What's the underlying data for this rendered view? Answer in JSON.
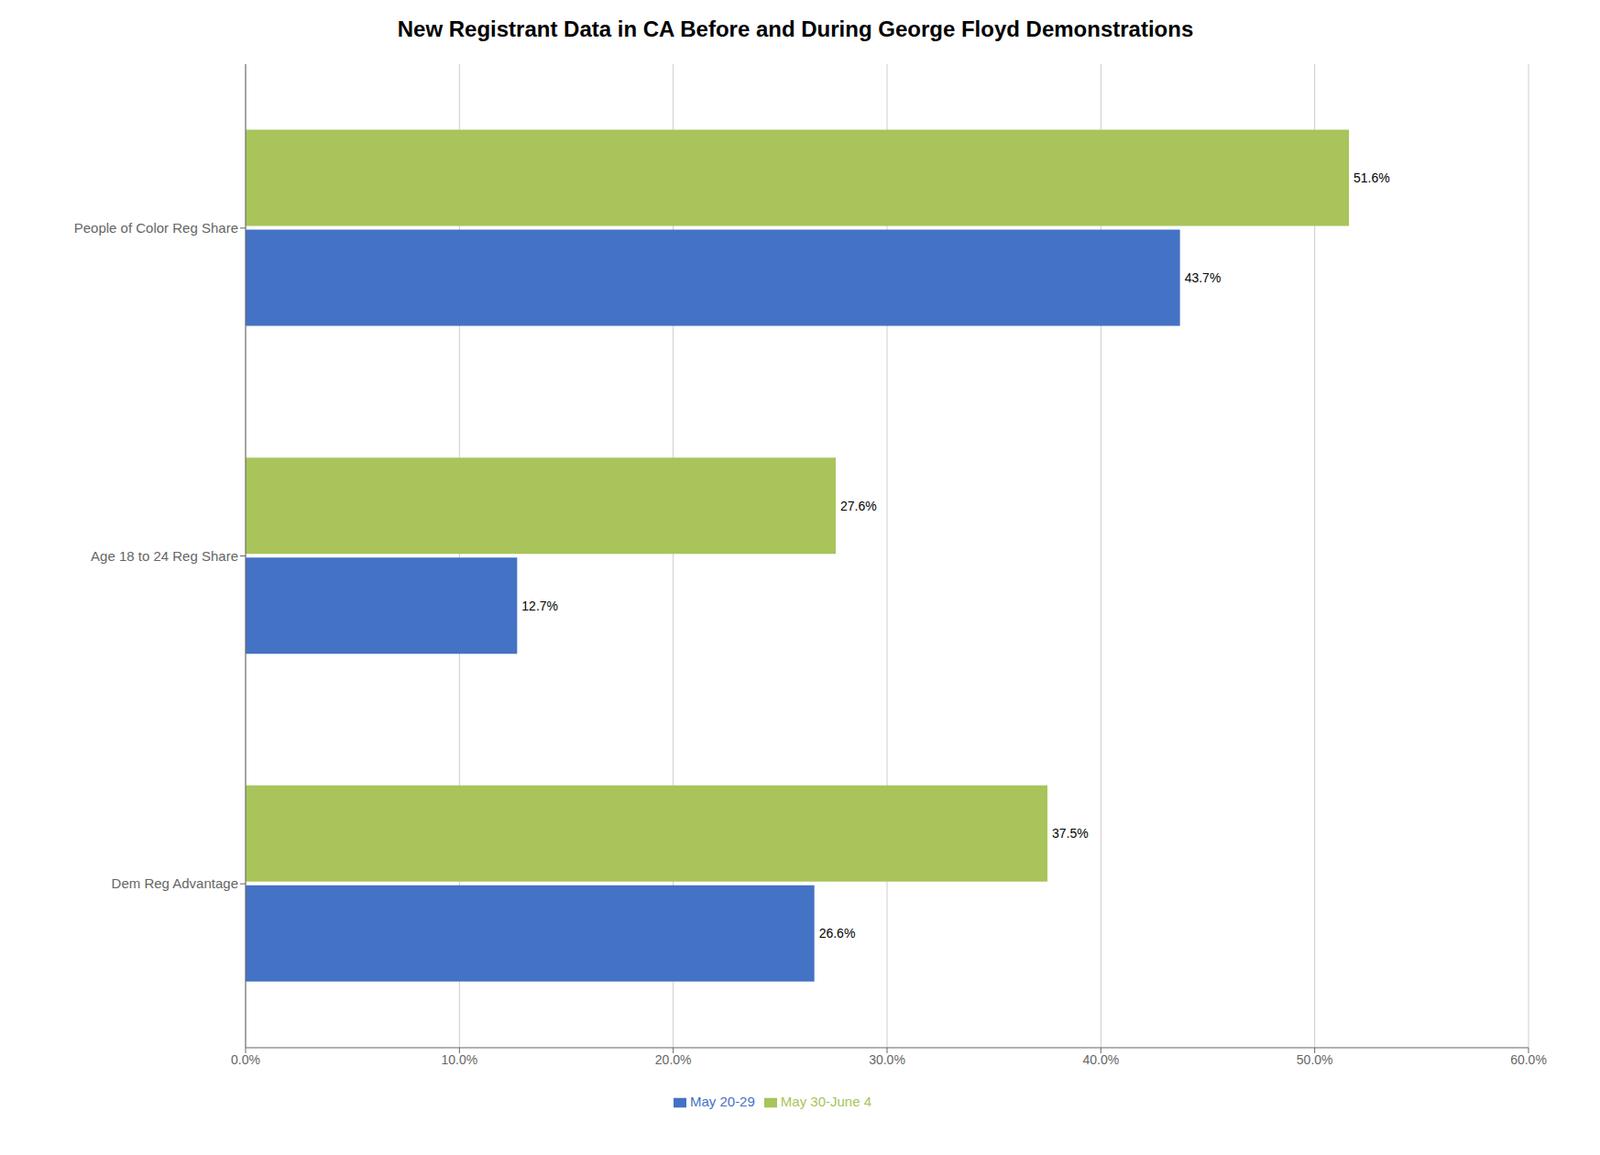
{
  "chart_data": {
    "type": "bar",
    "orientation": "horizontal",
    "title": "New Registrant Data in CA Before and During George Floyd Demonstrations",
    "categories": [
      "People of Color Reg Share",
      "Age 18 to 24 Reg Share",
      "Dem Reg Advantage"
    ],
    "series": [
      {
        "name": "May 30-June 4",
        "color": "#a8c45a",
        "values": [
          51.6,
          27.6,
          37.5
        ],
        "value_labels": [
          "51.6%",
          "27.6%",
          "37.5%"
        ]
      },
      {
        "name": "May 20-29",
        "color": "#4472c4",
        "values": [
          43.7,
          12.7,
          26.6
        ],
        "value_labels": [
          "43.7%",
          "12.7%",
          "26.6%"
        ]
      }
    ],
    "xlim": [
      0,
      60
    ],
    "xticks": [
      {
        "value": 0,
        "label": "0.0%"
      },
      {
        "value": 10,
        "label": "10.0%"
      },
      {
        "value": 20,
        "label": "20.0%"
      },
      {
        "value": 30,
        "label": "30.0%"
      },
      {
        "value": 40,
        "label": "40.0%"
      },
      {
        "value": 50,
        "label": "50.0%"
      },
      {
        "value": 60,
        "label": "60.0%"
      }
    ],
    "grid": true,
    "legend": "bottom",
    "data_labels": true
  }
}
